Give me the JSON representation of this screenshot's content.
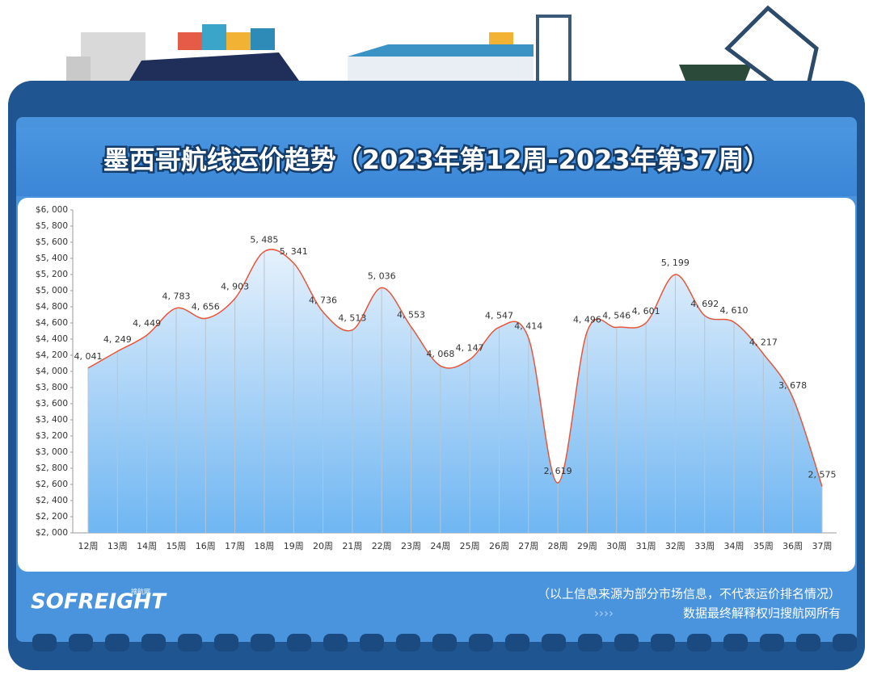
{
  "chart_data": {
    "type": "line",
    "title": "墨西哥航线运价趋势（2023年第12周-2023年第37周）",
    "categories": [
      "12周",
      "13周",
      "14周",
      "15周",
      "16周",
      "17周",
      "18周",
      "19周",
      "20周",
      "21周",
      "22周",
      "23周",
      "24周",
      "25周",
      "26周",
      "27周",
      "28周",
      "29周",
      "30周",
      "31周",
      "32周",
      "33周",
      "34周",
      "35周",
      "36周",
      "37周"
    ],
    "values": [
      4041,
      4249,
      4449,
      4783,
      4656,
      4903,
      5485,
      5341,
      4736,
      4513,
      5036,
      4553,
      4068,
      4147,
      4547,
      4414,
      2619,
      4496,
      4546,
      4601,
      5199,
      4692,
      4610,
      4217,
      3678,
      2575
    ],
    "value_labels": [
      "4, 041",
      "4, 249",
      "4, 449",
      "4, 783",
      "4, 656",
      "4, 903",
      "5, 485",
      "5, 341",
      "4, 736",
      "4, 513",
      "5, 036",
      "4, 553",
      "4, 068",
      "4, 147",
      "4, 547",
      "4, 414",
      "2, 619",
      "4, 496",
      "4, 546",
      "4, 601",
      "5, 199",
      "4, 692",
      "4, 610",
      "4, 217",
      "3, 678",
      "2, 575"
    ],
    "color": "#e8553a",
    "ylim": [
      2000,
      6000
    ],
    "yticks": [
      {
        "value": 2000,
        "label": "$2, 000"
      },
      {
        "value": 2200,
        "label": "$2, 200"
      },
      {
        "value": 2400,
        "label": "$2, 400"
      },
      {
        "value": 2600,
        "label": "$2, 600"
      },
      {
        "value": 2800,
        "label": "$2, 800"
      },
      {
        "value": 3000,
        "label": "$3, 000"
      },
      {
        "value": 3200,
        "label": "$3, 200"
      },
      {
        "value": 3400,
        "label": "$3, 400"
      },
      {
        "value": 3600,
        "label": "$3, 600"
      },
      {
        "value": 3800,
        "label": "$3, 800"
      },
      {
        "value": 4000,
        "label": "$4, 000"
      },
      {
        "value": 4200,
        "label": "$4, 200"
      },
      {
        "value": 4400,
        "label": "$4, 400"
      },
      {
        "value": 4600,
        "label": "$4, 600"
      },
      {
        "value": 4800,
        "label": "$4, 800"
      },
      {
        "value": 5000,
        "label": "$5, 000"
      },
      {
        "value": 5200,
        "label": "$5, 200"
      },
      {
        "value": 5400,
        "label": "$5, 400"
      },
      {
        "value": 5600,
        "label": "$5, 600"
      },
      {
        "value": 5800,
        "label": "$5, 800"
      },
      {
        "value": 6000,
        "label": "$6, 000"
      }
    ],
    "grid": true,
    "brand": "SOFREIGHT",
    "brand_sub": "搜航网",
    "notes": [
      "（以上信息来源为部分市场信息，不代表运价排名情况）",
      "数据最终解释权归搜航网所有"
    ],
    "arrows": "››››"
  }
}
